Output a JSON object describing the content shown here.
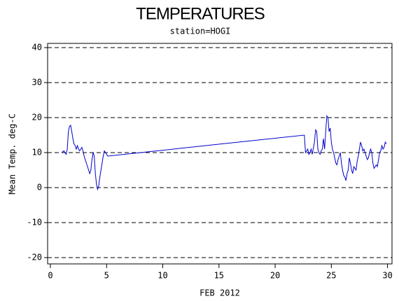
{
  "chart_data": {
    "type": "line",
    "title": "TEMPERATURES",
    "subtitle": "station=HOGI",
    "y_label": "Mean Temp. deg-C",
    "x_label": "FEB 2012",
    "color": "#0000cc",
    "grid": true,
    "xlim": [
      -0.25,
      30.4
    ],
    "ylim": [
      -21.8,
      41.2
    ],
    "xticks": [
      0,
      5,
      10,
      15,
      20,
      25,
      30
    ],
    "yticks": [
      -20,
      -10,
      0,
      10,
      20,
      30,
      40
    ],
    "x": [
      1.0,
      1.2,
      1.4,
      1.5,
      1.6,
      1.7,
      1.8,
      1.9,
      2.0,
      2.1,
      2.2,
      2.3,
      2.4,
      2.5,
      2.6,
      2.7,
      2.8,
      2.9,
      3.0,
      3.2,
      3.4,
      3.5,
      3.6,
      3.7,
      3.8,
      3.9,
      4.0,
      4.1,
      4.2,
      4.3,
      4.4,
      4.5,
      4.6,
      4.7,
      4.8,
      4.9,
      5.0,
      5.1,
      22.6,
      22.7,
      22.8,
      22.9,
      23.0,
      23.1,
      23.2,
      23.3,
      23.5,
      23.6,
      23.7,
      23.8,
      23.9,
      24.0,
      24.1,
      24.2,
      24.3,
      24.4,
      24.5,
      24.6,
      24.7,
      24.8,
      24.9,
      25.0,
      25.1,
      25.2,
      25.3,
      25.4,
      25.5,
      25.6,
      25.7,
      25.8,
      25.9,
      26.0,
      26.1,
      26.2,
      26.3,
      26.4,
      26.5,
      26.6,
      26.7,
      26.8,
      26.9,
      27.0,
      27.1,
      27.2,
      27.3,
      27.4,
      27.5,
      27.6,
      27.7,
      27.8,
      27.9,
      28.0,
      28.1,
      28.2,
      28.3,
      28.4,
      28.5,
      28.6,
      28.7,
      28.8,
      28.9,
      29.0,
      29.1,
      29.2,
      29.3,
      29.4,
      29.5,
      29.6,
      29.7,
      29.8,
      29.9
    ],
    "values": [
      10,
      10.5,
      9.5,
      11,
      16,
      17.5,
      17.8,
      16,
      14,
      12.5,
      12,
      11,
      12,
      11,
      10.5,
      11,
      11.5,
      10.5,
      9,
      7,
      5,
      4,
      5,
      8,
      10,
      9,
      4,
      1,
      -0.5,
      0.5,
      3,
      5,
      7,
      9,
      10.5,
      10,
      9.5,
      9,
      15,
      10,
      10.5,
      11,
      9.5,
      10,
      11,
      9.5,
      13,
      16.5,
      16,
      11,
      10,
      9.5,
      10.5,
      11,
      14,
      11,
      16,
      20.5,
      20,
      16,
      17,
      13,
      11,
      10,
      8.5,
      7,
      6.5,
      8,
      9,
      10,
      7,
      5,
      3.5,
      3,
      2,
      4,
      5,
      8.5,
      7,
      5,
      4,
      6,
      5.5,
      5,
      7.5,
      9,
      11,
      13,
      12,
      10.5,
      11,
      10,
      9,
      8,
      8.5,
      10,
      11,
      10,
      7,
      5.5,
      6,
      6.5,
      6,
      8,
      10,
      10.5,
      12,
      11,
      11.5,
      13,
      12.5
    ]
  }
}
